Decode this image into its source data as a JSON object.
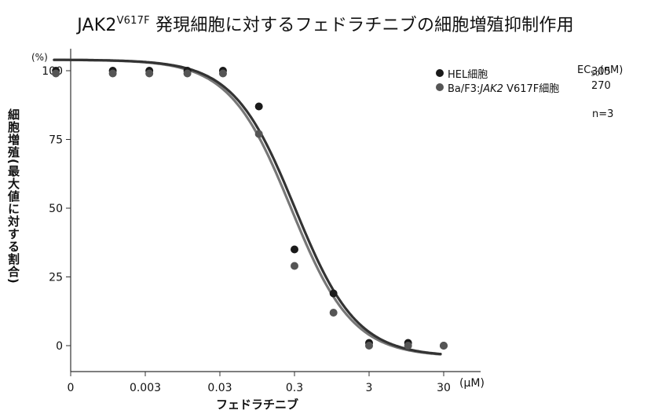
{
  "title": {
    "base": "JAK2",
    "sup": "V617F",
    "rest": "発現細胞に対するフェドラチニブの細胞増殖抑制作用"
  },
  "chart_data": {
    "type": "scatter",
    "title": "JAK2V617F発現細胞に対するフェドラチニブの細胞増殖抑制作用",
    "xlabel": "フェドラチニブ",
    "x_unit": "(μM)",
    "ylabel": "細胞増殖(最大値に対する割合)",
    "y_unit": "(%)",
    "x_scale": "log",
    "x_ticks": [
      "0",
      "0.003",
      "0.03",
      "0.3",
      "3",
      "30"
    ],
    "x_tick_values": [
      0,
      0.003,
      0.03,
      0.3,
      3,
      30
    ],
    "y_ticks": [
      "0",
      "25",
      "50",
      "75",
      "100"
    ],
    "ylim": [
      0,
      100
    ],
    "legend_position": "top-right",
    "ec50_header": "EC50(nM)",
    "series": [
      {
        "name": "HEL細胞",
        "ec50": "305",
        "color": "#1a1a1a",
        "x": [
          0.00019,
          0.0011,
          0.0034,
          0.011,
          0.033,
          0.1,
          0.3,
          1,
          3,
          10,
          30
        ],
        "y": [
          100,
          100,
          100,
          100,
          100,
          87,
          35,
          19,
          1,
          1,
          0
        ]
      },
      {
        "name": "Ba/F3:JAK2 V617F細胞",
        "name_parts": [
          "Ba/F3:",
          "JAK2",
          " V617F細胞"
        ],
        "ec50": "270",
        "color": "#555555",
        "x": [
          0.00019,
          0.0011,
          0.0034,
          0.011,
          0.033,
          0.1,
          0.3,
          1,
          3,
          10,
          30
        ],
        "y": [
          99,
          99,
          99,
          99,
          99,
          77,
          29,
          12,
          0,
          0,
          0
        ]
      }
    ],
    "n_label": "n=3"
  }
}
